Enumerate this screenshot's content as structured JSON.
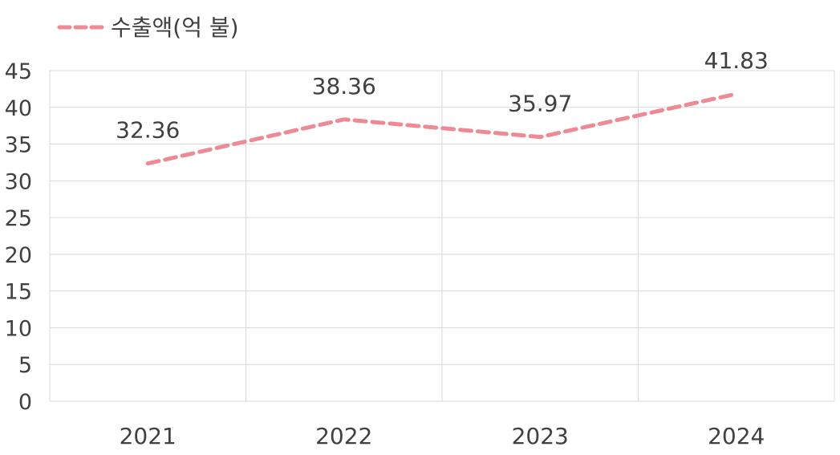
{
  "chart_data": {
    "type": "line",
    "categories": [
      "2021",
      "2022",
      "2023",
      "2024"
    ],
    "series": [
      {
        "name": "수출액(억 불)",
        "values": [
          32.36,
          38.36,
          35.97,
          41.83
        ],
        "color": "#ee8a95",
        "line_style": "dashed"
      }
    ],
    "data_labels": [
      "32.36",
      "38.36",
      "35.97",
      "41.83"
    ],
    "ylim": [
      0,
      45
    ],
    "yticks": [
      "0",
      "5",
      "10",
      "15",
      "20",
      "25",
      "30",
      "35",
      "40",
      "45"
    ],
    "ytick_values": [
      0,
      5,
      10,
      15,
      20,
      25,
      30,
      35,
      40,
      45
    ],
    "title": "",
    "xlabel": "",
    "ylabel": "",
    "grid": true,
    "legend_position": "top-left"
  }
}
